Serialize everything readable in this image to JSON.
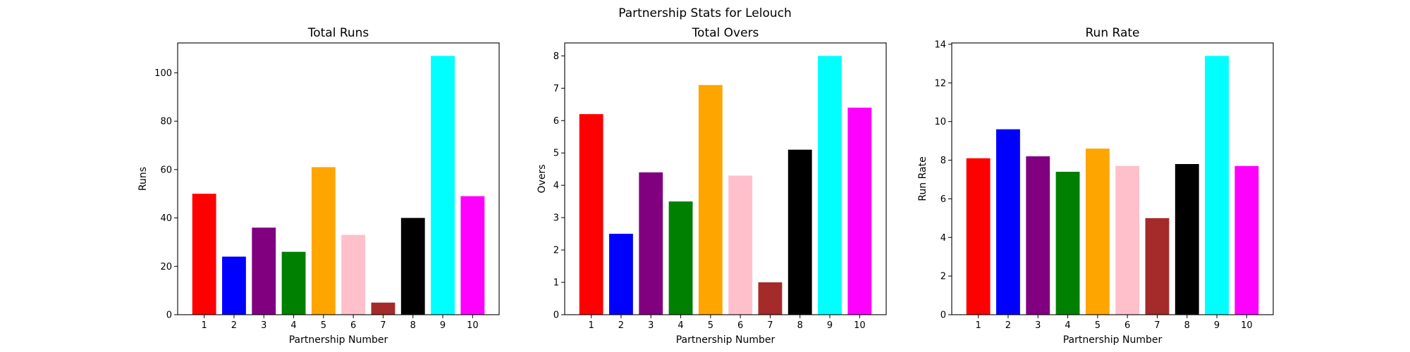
{
  "figure": {
    "title": "Partnership Stats for Lelouch"
  },
  "chart_data": [
    {
      "type": "bar",
      "title": "Total Runs",
      "xlabel": "Partnership Number",
      "ylabel": "Runs",
      "categories": [
        "1",
        "2",
        "3",
        "4",
        "5",
        "6",
        "7",
        "8",
        "9",
        "10"
      ],
      "values": [
        50,
        24,
        36,
        26,
        61,
        33,
        5,
        40,
        107,
        49
      ],
      "colors": [
        "#ff0000",
        "#0000ff",
        "#800080",
        "#008000",
        "#ffa500",
        "#ffc0cb",
        "#a52a2a",
        "#000000",
        "#00ffff",
        "#ff00ff"
      ],
      "ylim": [
        0,
        112.35
      ],
      "yticks": [
        0,
        20,
        40,
        60,
        80,
        100
      ],
      "grid": false
    },
    {
      "type": "bar",
      "title": "Total Overs",
      "xlabel": "Partnership Number",
      "ylabel": "Overs",
      "categories": [
        "1",
        "2",
        "3",
        "4",
        "5",
        "6",
        "7",
        "8",
        "9",
        "10"
      ],
      "values": [
        6.2,
        2.5,
        4.4,
        3.5,
        7.1,
        4.3,
        1.0,
        5.1,
        8.0,
        6.4
      ],
      "colors": [
        "#ff0000",
        "#0000ff",
        "#800080",
        "#008000",
        "#ffa500",
        "#ffc0cb",
        "#a52a2a",
        "#000000",
        "#00ffff",
        "#ff00ff"
      ],
      "ylim": [
        0,
        8.4
      ],
      "yticks": [
        0,
        1,
        2,
        3,
        4,
        5,
        6,
        7,
        8
      ],
      "grid": false
    },
    {
      "type": "bar",
      "title": "Run Rate",
      "xlabel": "Partnership Number",
      "ylabel": "Run Rate",
      "categories": [
        "1",
        "2",
        "3",
        "4",
        "5",
        "6",
        "7",
        "8",
        "9",
        "10"
      ],
      "values": [
        8.1,
        9.6,
        8.2,
        7.4,
        8.6,
        7.7,
        5.0,
        7.8,
        13.4,
        7.7
      ],
      "colors": [
        "#ff0000",
        "#0000ff",
        "#800080",
        "#008000",
        "#ffa500",
        "#ffc0cb",
        "#a52a2a",
        "#000000",
        "#00ffff",
        "#ff00ff"
      ],
      "ylim": [
        0,
        14.07
      ],
      "yticks": [
        0,
        2,
        4,
        6,
        8,
        10,
        12,
        14
      ],
      "grid": false
    }
  ]
}
